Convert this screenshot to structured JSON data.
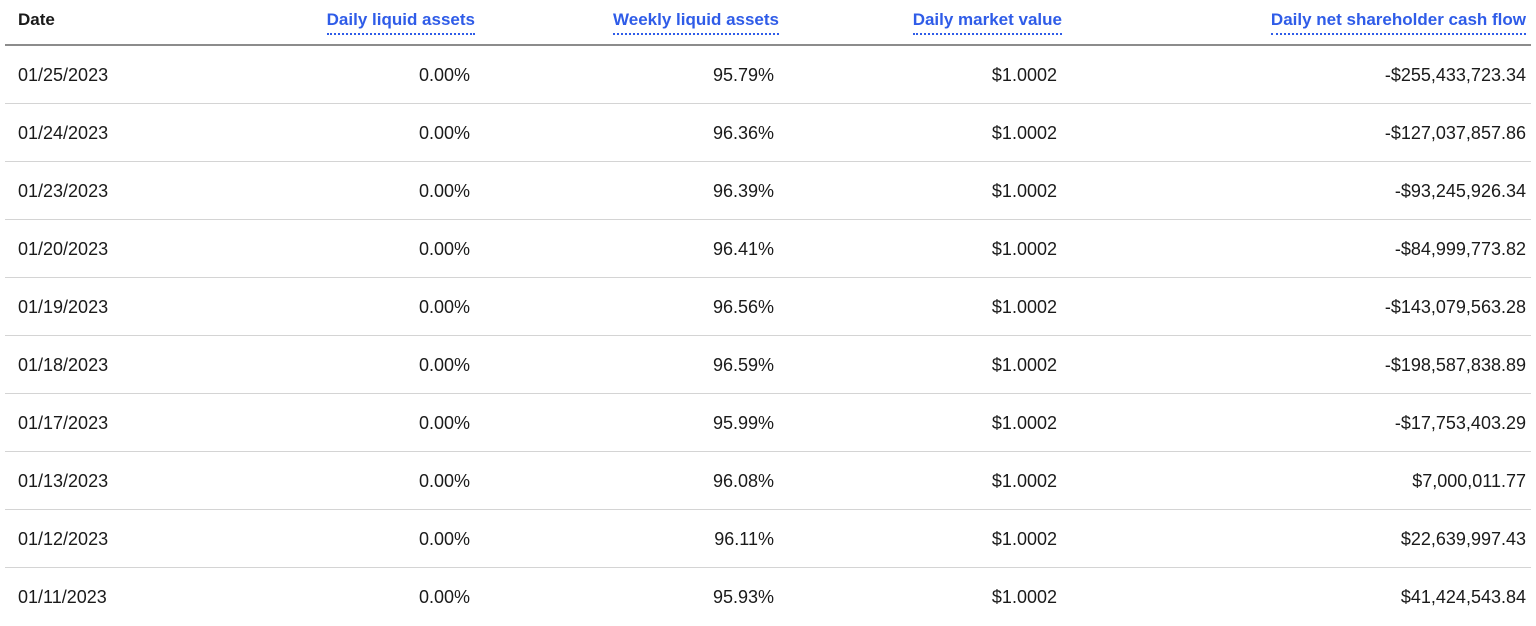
{
  "table": {
    "headers": {
      "date": "Date",
      "daily_liquid_assets": "Daily liquid assets",
      "weekly_liquid_assets": "Weekly liquid assets",
      "daily_market_value": "Daily market value",
      "daily_net_cash_flow": "Daily net shareholder cash flow"
    },
    "rows": [
      {
        "date": "01/25/2023",
        "dla": "0.00%",
        "wla": "95.79%",
        "dmv": "$1.0002",
        "cf": "-$255,433,723.34"
      },
      {
        "date": "01/24/2023",
        "dla": "0.00%",
        "wla": "96.36%",
        "dmv": "$1.0002",
        "cf": "-$127,037,857.86"
      },
      {
        "date": "01/23/2023",
        "dla": "0.00%",
        "wla": "96.39%",
        "dmv": "$1.0002",
        "cf": "-$93,245,926.34"
      },
      {
        "date": "01/20/2023",
        "dla": "0.00%",
        "wla": "96.41%",
        "dmv": "$1.0002",
        "cf": "-$84,999,773.82"
      },
      {
        "date": "01/19/2023",
        "dla": "0.00%",
        "wla": "96.56%",
        "dmv": "$1.0002",
        "cf": "-$143,079,563.28"
      },
      {
        "date": "01/18/2023",
        "dla": "0.00%",
        "wla": "96.59%",
        "dmv": "$1.0002",
        "cf": "-$198,587,838.89"
      },
      {
        "date": "01/17/2023",
        "dla": "0.00%",
        "wla": "95.99%",
        "dmv": "$1.0002",
        "cf": "-$17,753,403.29"
      },
      {
        "date": "01/13/2023",
        "dla": "0.00%",
        "wla": "96.08%",
        "dmv": "$1.0002",
        "cf": "$7,000,011.77"
      },
      {
        "date": "01/12/2023",
        "dla": "0.00%",
        "wla": "96.11%",
        "dmv": "$1.0002",
        "cf": "$22,639,997.43"
      },
      {
        "date": "01/11/2023",
        "dla": "0.00%",
        "wla": "95.93%",
        "dmv": "$1.0002",
        "cf": "$41,424,543.84"
      }
    ]
  },
  "colors": {
    "link": "#2f5ce8",
    "text": "#1a1a1a",
    "header_rule": "#8c8c8c",
    "row_rule": "#d4d4d4"
  }
}
